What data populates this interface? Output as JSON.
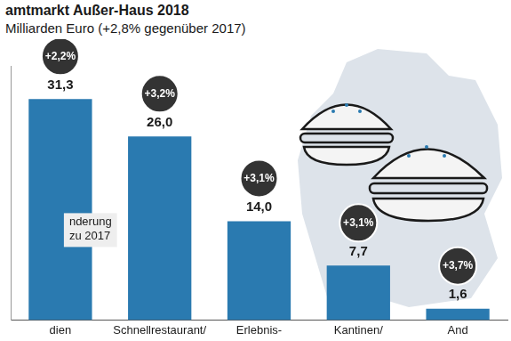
{
  "chart_data": {
    "type": "bar",
    "title": "amtmarkt Außer-Haus 2018",
    "subtitle": "Milliarden Euro (+2,8% gegenüber 2017)",
    "annotation": "nderung zu 2017",
    "categories": [
      "dien",
      "Schnellrestaurant/",
      "Erlebnis-",
      "Kantinen/",
      "And"
    ],
    "values": [
      31.3,
      26.0,
      14.0,
      7.7,
      1.6
    ],
    "value_labels": [
      "31,3",
      "26,0",
      "14,0",
      "7,7",
      "1,6"
    ],
    "changes": [
      2.2,
      3.2,
      3.1,
      3.1,
      3.7
    ],
    "change_labels": [
      "+2,2%",
      "+3,2%",
      "+3,1%",
      "+3,1%",
      "+3,7%"
    ],
    "color": "#2a7ab0",
    "ylim": [
      0,
      36
    ],
    "yticks": [],
    "grid": false,
    "data_labels": true,
    "tick_labels": "x"
  }
}
